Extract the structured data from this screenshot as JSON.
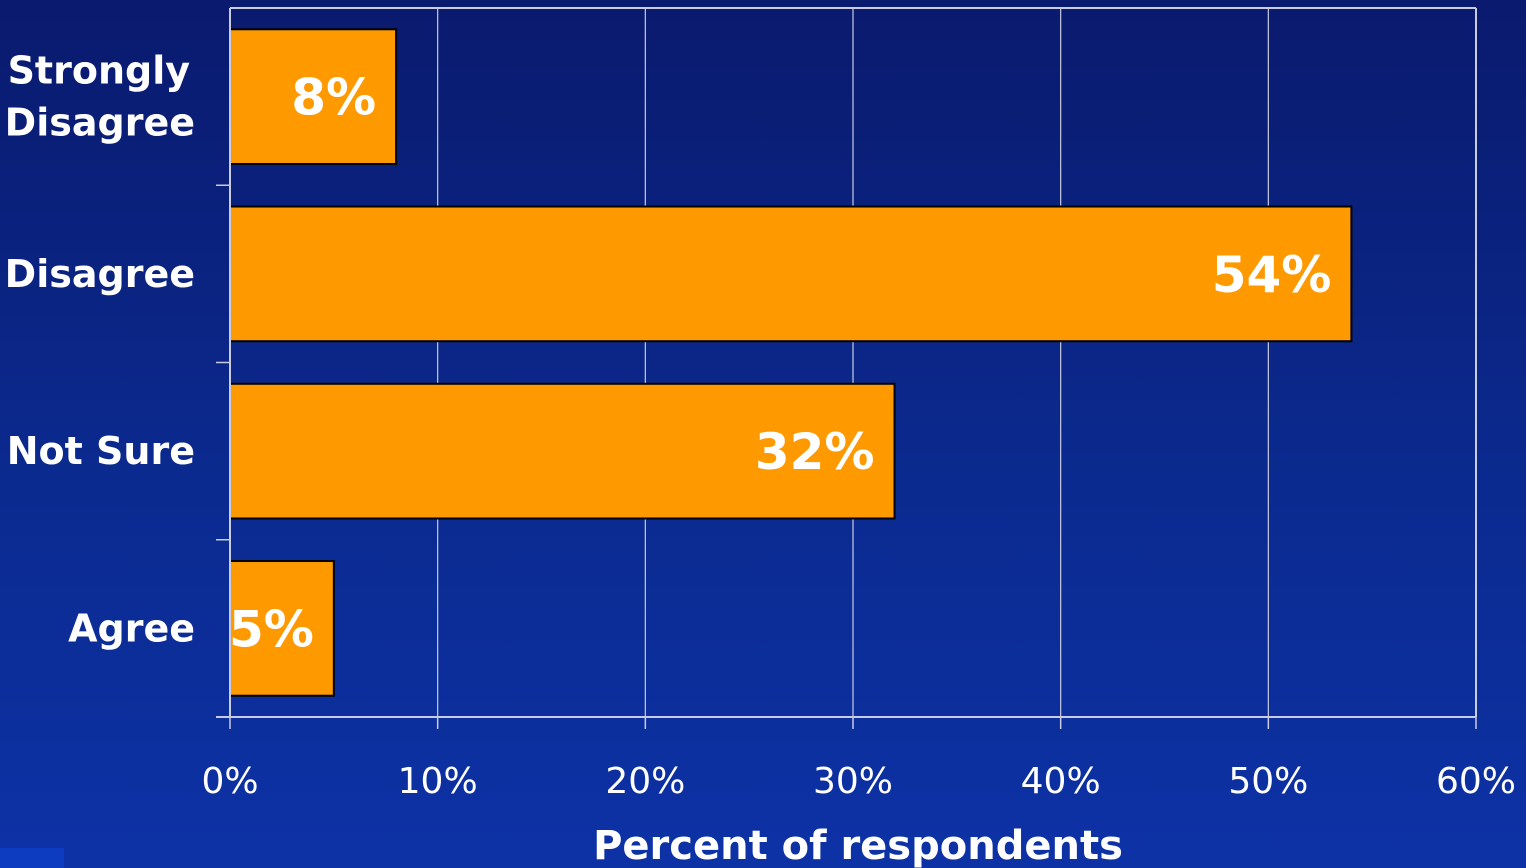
{
  "chart_data": {
    "type": "bar",
    "orientation": "horizontal",
    "categories": [
      "Strongly Disagree",
      "Disagree",
      "Not Sure",
      "Agree"
    ],
    "category_lines": [
      [
        "Strongly",
        "Disagree"
      ],
      [
        "Disagree"
      ],
      [
        "Not Sure"
      ],
      [
        "Agree"
      ]
    ],
    "values": [
      8,
      54,
      32,
      5
    ],
    "data_labels": [
      "8%",
      "54%",
      "32%",
      "5%"
    ],
    "xlabel": "Percent of respondents",
    "ylabel": "",
    "xlim": [
      0,
      60
    ],
    "x_ticks": [
      0,
      10,
      20,
      30,
      40,
      50,
      60
    ],
    "x_tick_labels": [
      "0%",
      "10%",
      "20%",
      "30%",
      "40%",
      "50%",
      "60%"
    ],
    "grid": true,
    "legend": "none",
    "colors": {
      "bar": "#ff9900",
      "bar_border": "#000000",
      "gridline": "#c8cce0",
      "text": "#ffffff"
    }
  }
}
